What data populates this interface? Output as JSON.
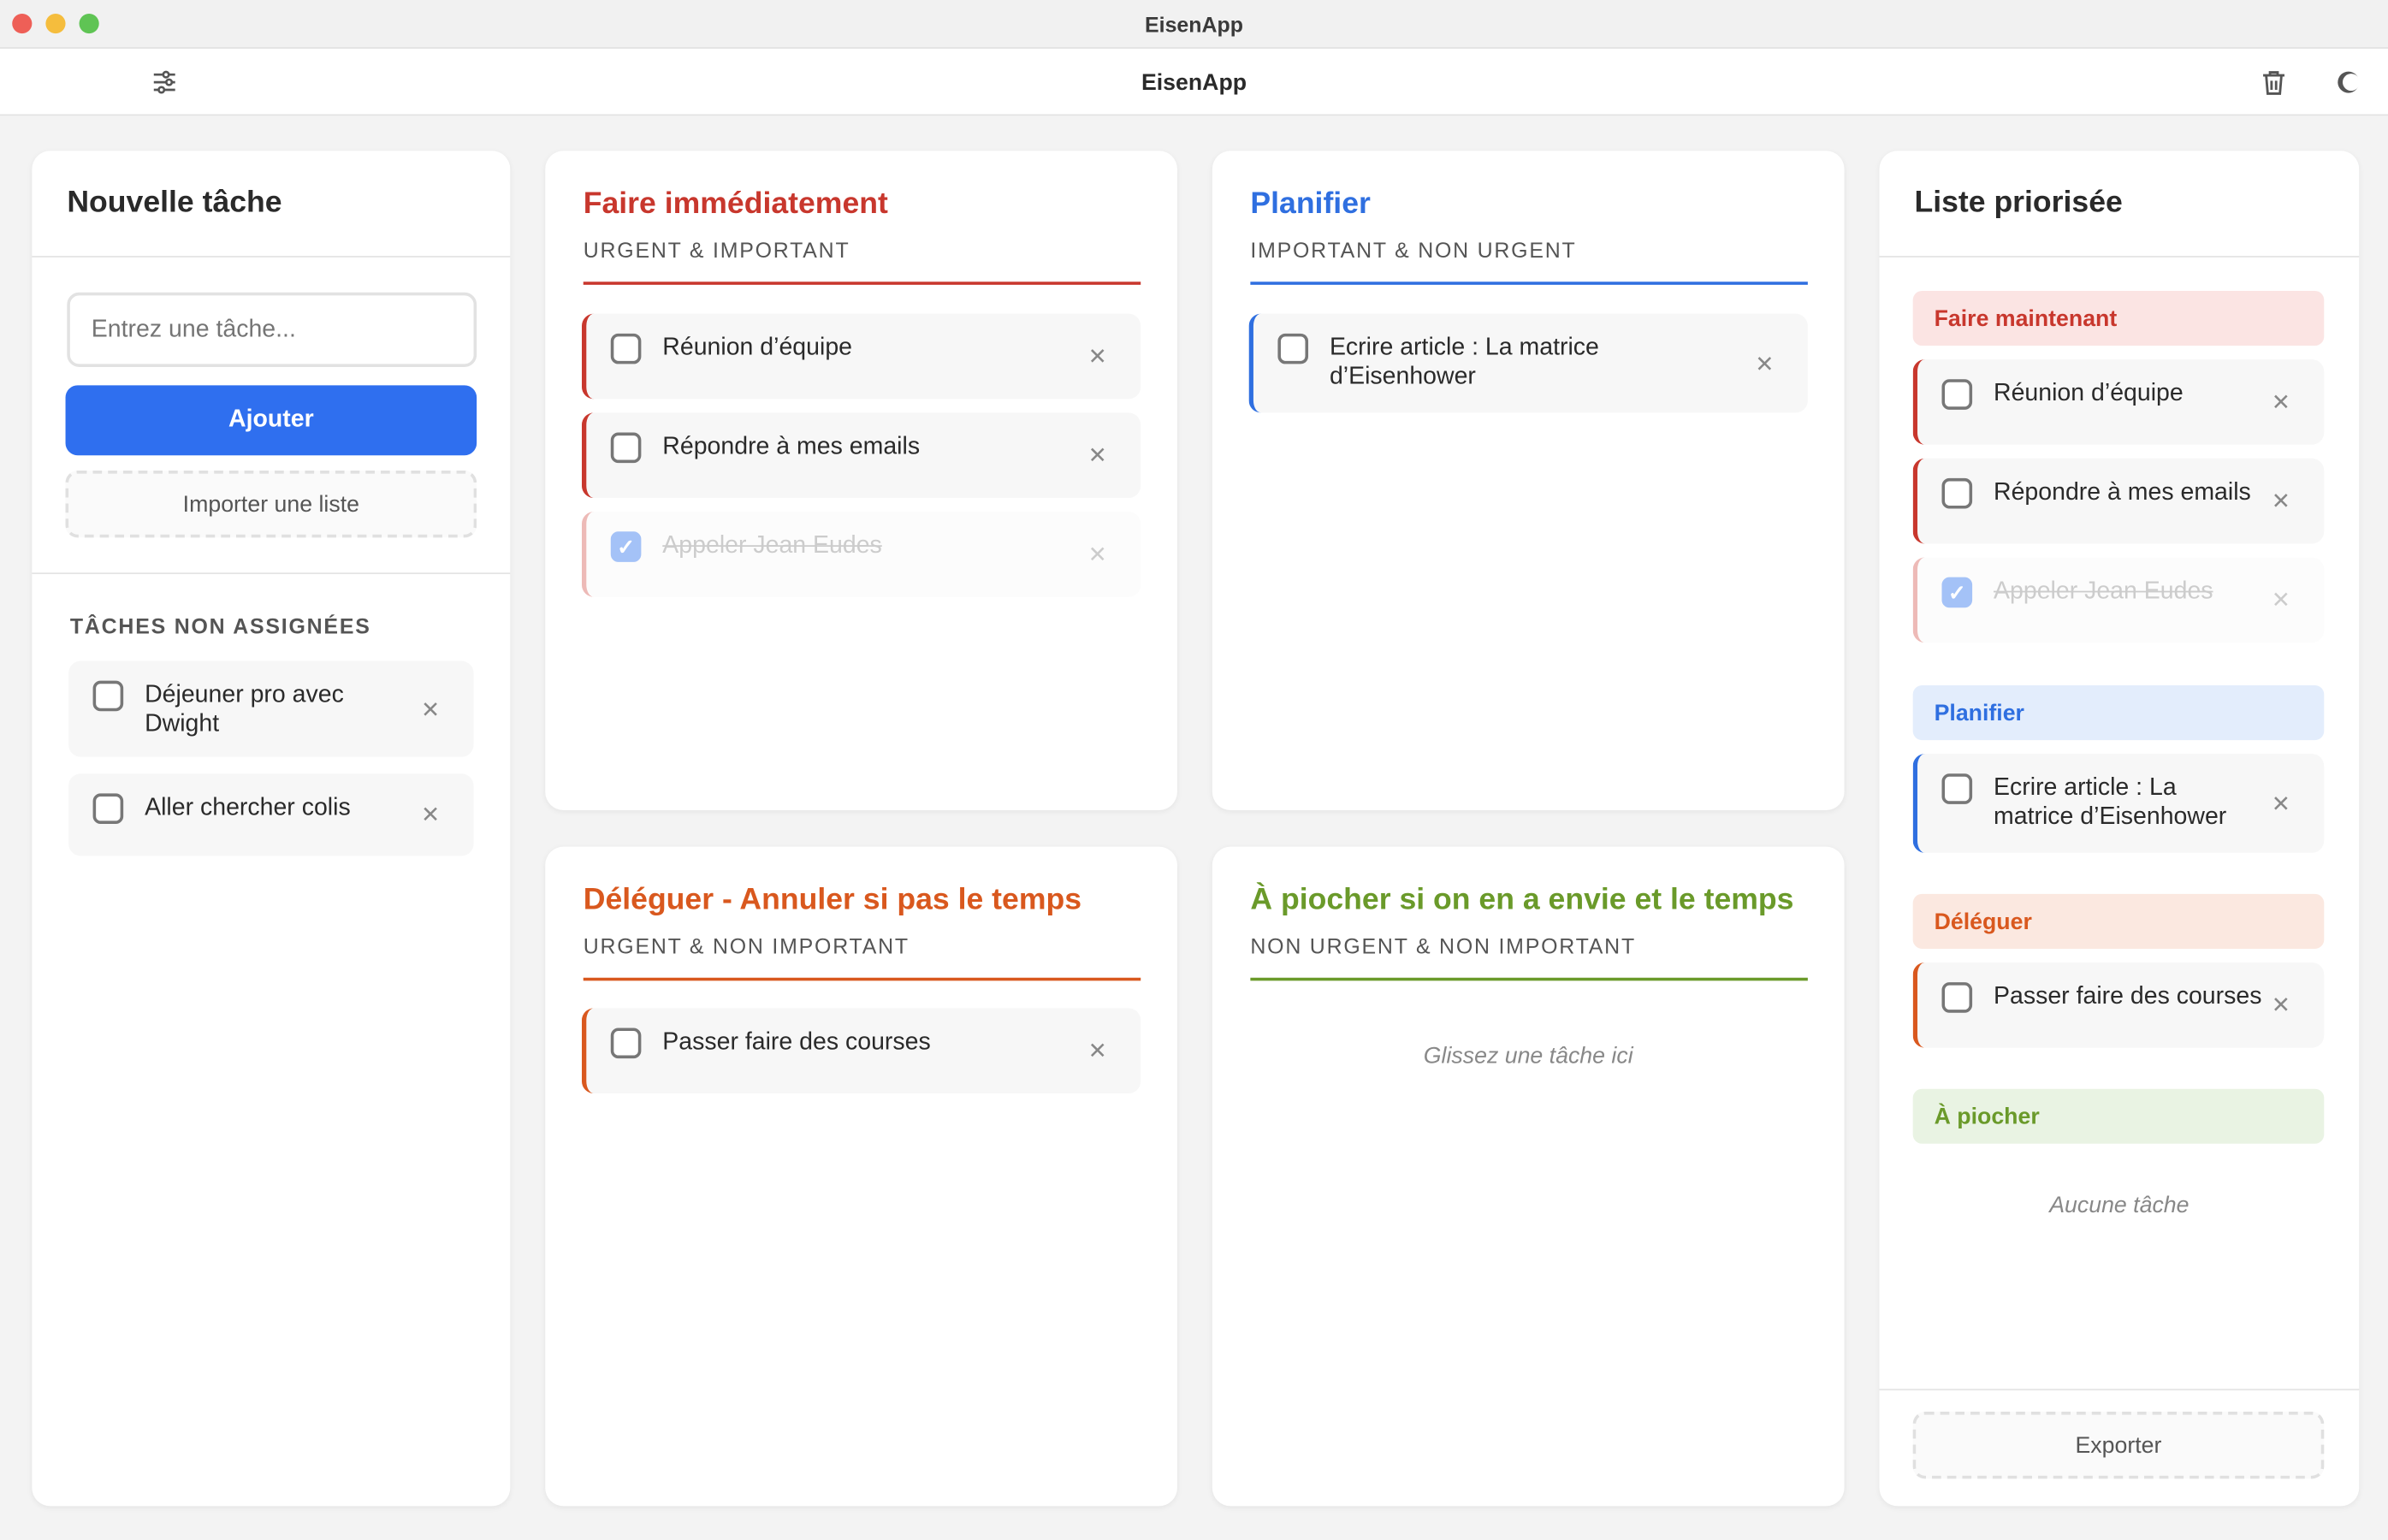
{
  "window": {
    "title": "EisenApp"
  },
  "toolbar": {
    "title": "EisenApp",
    "settings_icon": "sliders-icon",
    "trash_icon": "trash-icon",
    "theme_icon": "moon-icon"
  },
  "colors": {
    "accent": "#2f6fef",
    "urgent_important": "#c8372d",
    "important": "#2f6fe0",
    "urgent": "#d9581e",
    "neither": "#6a9a2a"
  },
  "new_task": {
    "title": "Nouvelle tâche",
    "input_placeholder": "Entrez une tâche...",
    "add_label": "Ajouter",
    "import_label": "Importer une liste",
    "unassigned_title": "TÂCHES NON ASSIGNÉES",
    "unassigned": [
      {
        "text": "Déjeuner pro avec Dwight",
        "done": false
      },
      {
        "text": "Aller chercher colis",
        "done": false
      }
    ]
  },
  "quadrants": [
    {
      "title": "Faire immédiatement",
      "subtitle": "URGENT & IMPORTANT",
      "tasks": [
        {
          "text": "Réunion d’équipe",
          "done": false
        },
        {
          "text": "Répondre à mes emails",
          "done": false
        },
        {
          "text": "Appeler Jean Eudes",
          "done": true
        }
      ]
    },
    {
      "title": "Planifier",
      "subtitle": "IMPORTANT & NON URGENT",
      "tasks": [
        {
          "text": "Ecrire article : La matrice d’Eisenhower",
          "done": false
        }
      ]
    },
    {
      "title": "Déléguer - Annuler si pas le temps",
      "subtitle": "URGENT & NON IMPORTANT",
      "tasks": [
        {
          "text": "Passer faire des courses",
          "done": false
        }
      ]
    },
    {
      "title": "À piocher si on en a envie et le temps",
      "subtitle": "NON URGENT & NON IMPORTANT",
      "tasks": [],
      "empty": "Glissez une tâche ici"
    }
  ],
  "prioritized": {
    "title": "Liste priorisée",
    "groups": [
      {
        "label": "Faire maintenant",
        "tasks": [
          {
            "text": "Réunion d’équipe",
            "done": false
          },
          {
            "text": "Répondre à mes emails",
            "done": false
          },
          {
            "text": "Appeler Jean Eudes",
            "done": true
          }
        ]
      },
      {
        "label": "Planifier",
        "tasks": [
          {
            "text": "Ecrire article : La matrice d’Eisenhower",
            "done": false
          }
        ]
      },
      {
        "label": "Déléguer",
        "tasks": [
          {
            "text": "Passer faire des courses",
            "done": false
          }
        ]
      },
      {
        "label": "À piocher",
        "tasks": [],
        "empty": "Aucune tâche"
      }
    ],
    "export_label": "Exporter"
  }
}
